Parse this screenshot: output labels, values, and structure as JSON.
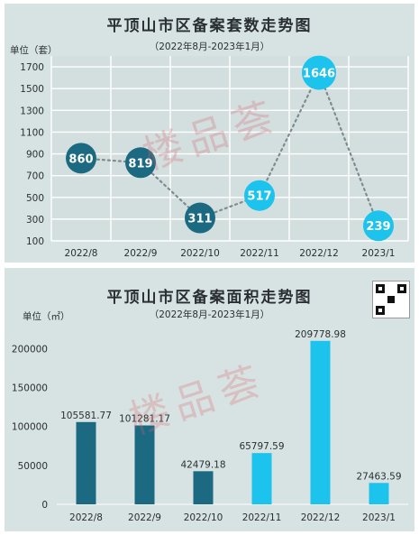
{
  "colors": {
    "panel_bg": "#d7e3e2",
    "dark": "#1b6a82",
    "light": "#1cc3ec",
    "grid": "#ffffff",
    "text": "#2a2f33",
    "watermark": "#d6606e"
  },
  "watermark_text": "楼品荟",
  "chart_data": [
    {
      "type": "line",
      "title": "平顶山市区备案套数走势图",
      "subtitle": "（2022年8月-2023年1月）",
      "unit_label": "单位（套）",
      "categories": [
        "2022/8",
        "2022/9",
        "2022/10",
        "2022/11",
        "2022/12",
        "2023/1"
      ],
      "values": [
        860,
        819,
        311,
        517,
        1646,
        239
      ],
      "labels": [
        "860",
        "819",
        "311",
        "517",
        "1646",
        "239"
      ],
      "point_colors": [
        "#1b6a82",
        "#1b6a82",
        "#1b6a82",
        "#1cc3ec",
        "#1cc3ec",
        "#1cc3ec"
      ],
      "yticks": [
        100,
        300,
        500,
        700,
        900,
        1100,
        1300,
        1500,
        1700
      ],
      "ylim": [
        100,
        1800
      ],
      "grid": true,
      "line_style": "dotted"
    },
    {
      "type": "bar",
      "title": "平顶山市区备案面积走势图",
      "subtitle": "（2022年8月-2023年1月）",
      "unit_label": "单位（㎡）",
      "categories": [
        "2022/8",
        "2022/9",
        "2022/10",
        "2022/11",
        "2022/12",
        "2023/1"
      ],
      "values": [
        105581.77,
        101281.17,
        42479.18,
        65797.59,
        209778.98,
        27463.59
      ],
      "labels": [
        "105581.77",
        "101281.17",
        "42479.18",
        "65797.59",
        "209778.98",
        "27463.59"
      ],
      "bar_colors": [
        "#1b6a82",
        "#1b6a82",
        "#1b6a82",
        "#1cc3ec",
        "#1cc3ec",
        "#1cc3ec"
      ],
      "yticks": [
        0,
        50000,
        100000,
        150000,
        200000
      ],
      "ylim": [
        0,
        220000
      ],
      "grid": false
    }
  ]
}
